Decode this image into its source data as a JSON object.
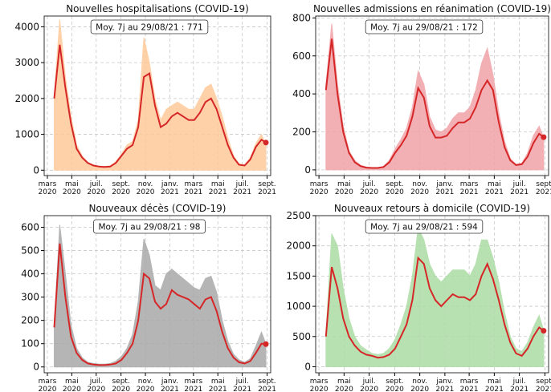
{
  "chart_data": [
    {
      "type": "line",
      "title": "Nouvelles hospitalisations (COVID-19)",
      "annotation": "Moy. 7j au 29/08/21 : 771",
      "x": [
        "2020-03-18",
        "2020-04-01",
        "2020-04-15",
        "2020-04-29",
        "2020-05-13",
        "2020-05-27",
        "2020-06-10",
        "2020-06-24",
        "2020-07-08",
        "2020-07-22",
        "2020-08-05",
        "2020-08-19",
        "2020-09-02",
        "2020-09-16",
        "2020-09-30",
        "2020-10-14",
        "2020-10-28",
        "2020-11-11",
        "2020-11-25",
        "2020-12-09",
        "2020-12-23",
        "2021-01-06",
        "2021-01-20",
        "2021-02-03",
        "2021-02-17",
        "2021-03-03",
        "2021-03-17",
        "2021-03-31",
        "2021-04-14",
        "2021-04-28",
        "2021-05-12",
        "2021-05-26",
        "2021-06-09",
        "2021-06-23",
        "2021-07-07",
        "2021-07-21",
        "2021-08-04",
        "2021-08-18",
        "2021-08-29"
      ],
      "series": [
        {
          "kind": "area",
          "color": "#ffc999",
          "values": [
            2100,
            4200,
            2600,
            1500,
            700,
            400,
            220,
            150,
            110,
            100,
            120,
            240,
            450,
            700,
            800,
            1400,
            3700,
            3000,
            2000,
            1400,
            1700,
            1800,
            1900,
            1800,
            1700,
            1700,
            2000,
            2300,
            2400,
            2000,
            1500,
            900,
            400,
            180,
            150,
            350,
            750,
            1000,
            700
          ]
        },
        {
          "kind": "line",
          "color": "#d62728",
          "values": [
            2000,
            3500,
            2300,
            1300,
            600,
            350,
            200,
            130,
            100,
            90,
            100,
            200,
            400,
            600,
            700,
            1200,
            2600,
            2700,
            1800,
            1200,
            1300,
            1500,
            1600,
            1500,
            1400,
            1400,
            1600,
            1900,
            2000,
            1700,
            1200,
            700,
            350,
            150,
            130,
            300,
            650,
            850,
            771
          ]
        }
      ],
      "xlim": [
        "2020-02-22",
        "2021-09-10"
      ],
      "ylim": [
        -150,
        4300
      ],
      "yticks": [
        0,
        1000,
        2000,
        3000,
        4000
      ],
      "grid": true
    },
    {
      "type": "line",
      "title": "Nouvelles admissions en réanimation (COVID-19)",
      "annotation": "Moy. 7j au 29/08/21 : 172",
      "x": [
        "2020-03-18",
        "2020-04-01",
        "2020-04-15",
        "2020-04-29",
        "2020-05-13",
        "2020-05-27",
        "2020-06-10",
        "2020-06-24",
        "2020-07-08",
        "2020-07-22",
        "2020-08-05",
        "2020-08-19",
        "2020-09-02",
        "2020-09-16",
        "2020-09-30",
        "2020-10-14",
        "2020-10-28",
        "2020-11-11",
        "2020-11-25",
        "2020-12-09",
        "2020-12-23",
        "2021-01-06",
        "2021-01-20",
        "2021-02-03",
        "2021-02-17",
        "2021-03-03",
        "2021-03-17",
        "2021-03-31",
        "2021-04-14",
        "2021-04-28",
        "2021-05-12",
        "2021-05-26",
        "2021-06-09",
        "2021-06-23",
        "2021-07-07",
        "2021-07-21",
        "2021-08-04",
        "2021-08-18",
        "2021-08-29"
      ],
      "series": [
        {
          "kind": "area",
          "color": "#f0a3a8",
          "values": [
            450,
            770,
            450,
            230,
            100,
            50,
            25,
            15,
            12,
            12,
            18,
            50,
            110,
            160,
            220,
            330,
            520,
            450,
            280,
            210,
            200,
            220,
            270,
            300,
            300,
            330,
            420,
            560,
            640,
            500,
            300,
            150,
            60,
            30,
            35,
            90,
            180,
            230,
            170
          ]
        },
        {
          "kind": "line",
          "color": "#d62728",
          "values": [
            420,
            690,
            400,
            200,
            90,
            40,
            20,
            12,
            10,
            10,
            15,
            40,
            90,
            130,
            180,
            280,
            430,
            380,
            230,
            170,
            170,
            180,
            220,
            250,
            250,
            270,
            330,
            420,
            470,
            420,
            250,
            120,
            50,
            25,
            30,
            70,
            140,
            190,
            172
          ]
        }
      ],
      "xlim": [
        "2020-02-22",
        "2021-09-10"
      ],
      "ylim": [
        -30,
        810
      ],
      "yticks": [
        0,
        200,
        400,
        600,
        800
      ],
      "grid": true
    },
    {
      "type": "line",
      "title": "Nouveaux décès (COVID-19)",
      "annotation": "Moy. 7j au 29/08/21 : 98",
      "x": [
        "2020-03-18",
        "2020-04-01",
        "2020-04-15",
        "2020-04-29",
        "2020-05-13",
        "2020-05-27",
        "2020-06-10",
        "2020-06-24",
        "2020-07-08",
        "2020-07-22",
        "2020-08-05",
        "2020-08-19",
        "2020-09-02",
        "2020-09-16",
        "2020-09-30",
        "2020-10-14",
        "2020-10-28",
        "2020-11-11",
        "2020-11-25",
        "2020-12-09",
        "2020-12-23",
        "2021-01-06",
        "2021-01-20",
        "2021-02-03",
        "2021-02-17",
        "2021-03-03",
        "2021-03-17",
        "2021-03-31",
        "2021-04-14",
        "2021-04-28",
        "2021-05-12",
        "2021-05-26",
        "2021-06-09",
        "2021-06-23",
        "2021-07-07",
        "2021-07-21",
        "2021-08-04",
        "2021-08-18",
        "2021-08-29"
      ],
      "series": [
        {
          "kind": "area",
          "color": "#a9a9a9",
          "values": [
            180,
            610,
            400,
            180,
            80,
            40,
            20,
            15,
            12,
            12,
            15,
            25,
            45,
            80,
            140,
            280,
            550,
            480,
            350,
            330,
            400,
            420,
            400,
            380,
            360,
            340,
            330,
            380,
            390,
            320,
            200,
            110,
            55,
            30,
            20,
            35,
            90,
            150,
            100
          ]
        },
        {
          "kind": "line",
          "color": "#d62728",
          "values": [
            170,
            530,
            300,
            130,
            60,
            30,
            15,
            10,
            8,
            8,
            10,
            15,
            30,
            60,
            100,
            200,
            400,
            380,
            280,
            250,
            270,
            330,
            310,
            300,
            290,
            270,
            250,
            290,
            300,
            240,
            150,
            80,
            40,
            20,
            15,
            25,
            60,
            100,
            98
          ]
        }
      ],
      "xlim": [
        "2020-02-22",
        "2021-09-10"
      ],
      "ylim": [
        -25,
        650
      ],
      "yticks": [
        0,
        100,
        200,
        300,
        400,
        500,
        600
      ],
      "grid": true
    },
    {
      "type": "line",
      "title": "Nouveaux retours à domicile (COVID-19)",
      "annotation": "Moy. 7j au 29/08/21 : 594",
      "x": [
        "2020-03-18",
        "2020-04-01",
        "2020-04-15",
        "2020-04-29",
        "2020-05-13",
        "2020-05-27",
        "2020-06-10",
        "2020-06-24",
        "2020-07-08",
        "2020-07-22",
        "2020-08-05",
        "2020-08-19",
        "2020-09-02",
        "2020-09-16",
        "2020-09-30",
        "2020-10-14",
        "2020-10-28",
        "2020-11-11",
        "2020-11-25",
        "2020-12-09",
        "2020-12-23",
        "2021-01-06",
        "2021-01-20",
        "2021-02-03",
        "2021-02-17",
        "2021-03-03",
        "2021-03-17",
        "2021-03-31",
        "2021-04-14",
        "2021-04-28",
        "2021-05-12",
        "2021-05-26",
        "2021-06-09",
        "2021-06-23",
        "2021-07-07",
        "2021-07-21",
        "2021-08-04",
        "2021-08-18",
        "2021-08-29"
      ],
      "series": [
        {
          "kind": "area",
          "color": "#acdca5",
          "values": [
            550,
            2200,
            2000,
            1300,
            800,
            500,
            350,
            280,
            220,
            200,
            220,
            300,
            450,
            700,
            1000,
            1500,
            2300,
            2100,
            1700,
            1500,
            1400,
            1500,
            1600,
            1600,
            1600,
            1500,
            1700,
            2100,
            2100,
            1800,
            1400,
            900,
            500,
            300,
            250,
            400,
            650,
            850,
            600
          ]
        },
        {
          "kind": "line",
          "color": "#d62728",
          "values": [
            500,
            1650,
            1300,
            800,
            500,
            350,
            250,
            200,
            180,
            150,
            160,
            200,
            300,
            500,
            700,
            1100,
            1800,
            1700,
            1300,
            1100,
            1000,
            1100,
            1200,
            1150,
            1150,
            1100,
            1200,
            1500,
            1700,
            1450,
            1100,
            700,
            400,
            220,
            180,
            300,
            500,
            650,
            594
          ]
        }
      ],
      "xlim": [
        "2020-02-22",
        "2021-09-10"
      ],
      "ylim": [
        -100,
        2500
      ],
      "yticks": [
        0,
        500,
        1000,
        1500,
        2000,
        2500
      ],
      "grid": true
    }
  ],
  "xticks": [
    {
      "value": "2020-03-01",
      "label": "mars 2020"
    },
    {
      "value": "2020-05-01",
      "label": "mai 2020"
    },
    {
      "value": "2020-07-01",
      "label": "juil. 2020"
    },
    {
      "value": "2020-09-01",
      "label": "sept. 2020"
    },
    {
      "value": "2020-11-01",
      "label": "nov. 2020"
    },
    {
      "value": "2021-01-01",
      "label": "janv. 2021"
    },
    {
      "value": "2021-03-01",
      "label": "mars 2021"
    },
    {
      "value": "2021-05-01",
      "label": "mai 2021"
    },
    {
      "value": "2021-07-01",
      "label": "juil. 2021"
    },
    {
      "value": "2021-09-01",
      "label": "sept. 2021"
    }
  ]
}
